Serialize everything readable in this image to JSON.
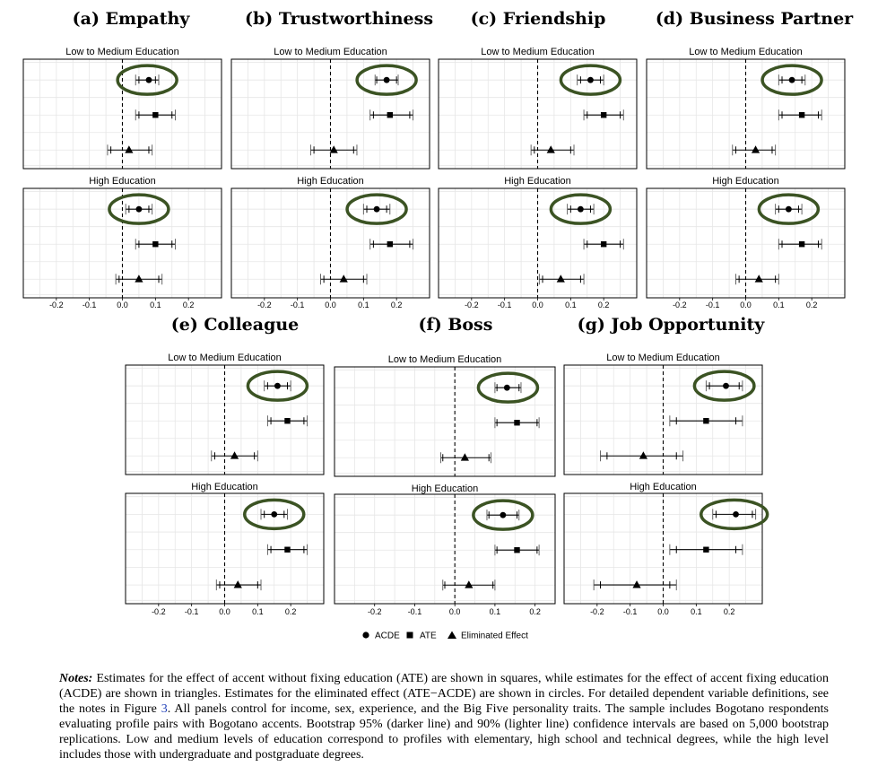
{
  "legend": {
    "acde": "ACDE",
    "ate": "ATE",
    "eliminated": "Eliminated Effect"
  },
  "panel_titles": {
    "low": "Low to Medium Education",
    "high": "High Education"
  },
  "tick_labels": [
    "-0.2",
    "-0.1",
    "0.0",
    "0.1",
    "0.2"
  ],
  "notes": {
    "label": "Notes:",
    "text_1": " Estimates for the effect of accent without fixing education (ATE) are shown in squares, while estimates for the effect of accent fixing education (ACDE) are shown in triangles. Estimates for the eliminated effect (ATE−ACDE) are shown in circles. For detailed dependent variable definitions, see the notes in Figure ",
    "figure_ref": "3",
    "text_2": ". All panels control for income, sex, experience, and the Big Five personality traits. The sample includes Bogotano respondents evaluating profile pairs with Bogotano accents. Bootstrap 95% (darker line) and 90% (lighter line) confidence intervals are based on 5,000 bootstrap replications. Low and medium levels of education correspond to profiles with elementary, high school and technical degrees, while the high level includes those with undergraduate and postgraduate degrees."
  },
  "colors": {
    "highlight": "#3b5323",
    "grid": "#e6e6e6",
    "frame": "#000000"
  },
  "chart_data": [
    {
      "type": "dot-whisker",
      "title": "(a) Empathy",
      "xlim": [
        -0.3,
        0.3
      ],
      "panels": [
        {
          "title": "Low to Medium Education",
          "eliminated": {
            "est": 0.08,
            "ci95": [
              0.04,
              0.11
            ],
            "ci90": [
              0.05,
              0.1
            ]
          },
          "ate": {
            "est": 0.1,
            "ci95": [
              0.04,
              0.16
            ],
            "ci90": [
              0.05,
              0.15
            ]
          },
          "acde": {
            "est": 0.02,
            "ci95": [
              -0.045,
              0.09
            ],
            "ci90": [
              -0.035,
              0.08
            ]
          }
        },
        {
          "title": "High Education",
          "eliminated": {
            "est": 0.05,
            "ci95": [
              0.01,
              0.09
            ],
            "ci90": [
              0.02,
              0.08
            ]
          },
          "ate": {
            "est": 0.1,
            "ci95": [
              0.04,
              0.16
            ],
            "ci90": [
              0.05,
              0.15
            ]
          },
          "acde": {
            "est": 0.05,
            "ci95": [
              -0.02,
              0.12
            ],
            "ci90": [
              -0.01,
              0.11
            ]
          }
        }
      ]
    },
    {
      "type": "dot-whisker",
      "title": "(b) Trustworthiness",
      "xlim": [
        -0.3,
        0.3
      ],
      "panels": [
        {
          "title": "Low to Medium Education",
          "eliminated": {
            "est": 0.17,
            "ci95": [
              0.135,
              0.205
            ],
            "ci90": [
              0.14,
              0.2
            ]
          },
          "ate": {
            "est": 0.18,
            "ci95": [
              0.12,
              0.25
            ],
            "ci90": [
              0.13,
              0.24
            ]
          },
          "acde": {
            "est": 0.01,
            "ci95": [
              -0.06,
              0.08
            ],
            "ci90": [
              -0.05,
              0.07
            ]
          }
        },
        {
          "title": "High Education",
          "eliminated": {
            "est": 0.14,
            "ci95": [
              0.1,
              0.18
            ],
            "ci90": [
              0.11,
              0.17
            ]
          },
          "ate": {
            "est": 0.18,
            "ci95": [
              0.12,
              0.25
            ],
            "ci90": [
              0.13,
              0.24
            ]
          },
          "acde": {
            "est": 0.04,
            "ci95": [
              -0.03,
              0.11
            ],
            "ci90": [
              -0.02,
              0.1
            ]
          }
        }
      ]
    },
    {
      "type": "dot-whisker",
      "title": "(c) Friendship",
      "xlim": [
        -0.3,
        0.3
      ],
      "panels": [
        {
          "title": "Low to Medium Education",
          "eliminated": {
            "est": 0.16,
            "ci95": [
              0.12,
              0.2
            ],
            "ci90": [
              0.13,
              0.19
            ]
          },
          "ate": {
            "est": 0.2,
            "ci95": [
              0.14,
              0.26
            ],
            "ci90": [
              0.15,
              0.25
            ]
          },
          "acde": {
            "est": 0.04,
            "ci95": [
              -0.02,
              0.11
            ],
            "ci90": [
              -0.01,
              0.1
            ]
          }
        },
        {
          "title": "High Education",
          "eliminated": {
            "est": 0.13,
            "ci95": [
              0.09,
              0.17
            ],
            "ci90": [
              0.1,
              0.16
            ]
          },
          "ate": {
            "est": 0.2,
            "ci95": [
              0.14,
              0.26
            ],
            "ci90": [
              0.15,
              0.25
            ]
          },
          "acde": {
            "est": 0.07,
            "ci95": [
              0.005,
              0.14
            ],
            "ci90": [
              0.015,
              0.13
            ]
          }
        }
      ]
    },
    {
      "type": "dot-whisker",
      "title": "(d) Business Partner",
      "xlim": [
        -0.3,
        0.3
      ],
      "panels": [
        {
          "title": "Low to Medium Education",
          "eliminated": {
            "est": 0.14,
            "ci95": [
              0.1,
              0.18
            ],
            "ci90": [
              0.11,
              0.17
            ]
          },
          "ate": {
            "est": 0.17,
            "ci95": [
              0.1,
              0.23
            ],
            "ci90": [
              0.11,
              0.22
            ]
          },
          "acde": {
            "est": 0.03,
            "ci95": [
              -0.04,
              0.09
            ],
            "ci90": [
              -0.03,
              0.08
            ]
          }
        },
        {
          "title": "High Education",
          "eliminated": {
            "est": 0.13,
            "ci95": [
              0.09,
              0.17
            ],
            "ci90": [
              0.1,
              0.16
            ]
          },
          "ate": {
            "est": 0.17,
            "ci95": [
              0.1,
              0.23
            ],
            "ci90": [
              0.11,
              0.22
            ]
          },
          "acde": {
            "est": 0.04,
            "ci95": [
              -0.03,
              0.1
            ],
            "ci90": [
              -0.02,
              0.09
            ]
          }
        }
      ]
    },
    {
      "type": "dot-whisker",
      "title": "(e) Colleague",
      "xlim": [
        -0.3,
        0.3
      ],
      "panels": [
        {
          "title": "Low to Medium Education",
          "eliminated": {
            "est": 0.16,
            "ci95": [
              0.12,
              0.2
            ],
            "ci90": [
              0.13,
              0.19
            ]
          },
          "ate": {
            "est": 0.19,
            "ci95": [
              0.13,
              0.25
            ],
            "ci90": [
              0.14,
              0.24
            ]
          },
          "acde": {
            "est": 0.03,
            "ci95": [
              -0.04,
              0.1
            ],
            "ci90": [
              -0.03,
              0.09
            ]
          }
        },
        {
          "title": "High Education",
          "eliminated": {
            "est": 0.15,
            "ci95": [
              0.11,
              0.19
            ],
            "ci90": [
              0.12,
              0.18
            ]
          },
          "ate": {
            "est": 0.19,
            "ci95": [
              0.13,
              0.25
            ],
            "ci90": [
              0.14,
              0.24
            ]
          },
          "acde": {
            "est": 0.04,
            "ci95": [
              -0.025,
              0.11
            ],
            "ci90": [
              -0.015,
              0.1
            ]
          }
        }
      ]
    },
    {
      "type": "dot-whisker",
      "title": "(f) Boss",
      "xlim": [
        -0.3,
        0.25
      ],
      "panels": [
        {
          "title": "Low to Medium Education",
          "eliminated": {
            "est": 0.13,
            "ci95": [
              0.1,
              0.165
            ],
            "ci90": [
              0.105,
              0.16
            ]
          },
          "ate": {
            "est": 0.155,
            "ci95": [
              0.1,
              0.21
            ],
            "ci90": [
              0.105,
              0.205
            ]
          },
          "acde": {
            "est": 0.025,
            "ci95": [
              -0.035,
              0.09
            ],
            "ci90": [
              -0.03,
              0.085
            ]
          }
        },
        {
          "title": "High Education",
          "eliminated": {
            "est": 0.12,
            "ci95": [
              0.08,
              0.16
            ],
            "ci90": [
              0.085,
              0.155
            ]
          },
          "ate": {
            "est": 0.155,
            "ci95": [
              0.1,
              0.21
            ],
            "ci90": [
              0.105,
              0.205
            ]
          },
          "acde": {
            "est": 0.035,
            "ci95": [
              -0.03,
              0.1
            ],
            "ci90": [
              -0.025,
              0.095
            ]
          }
        }
      ]
    },
    {
      "type": "dot-whisker",
      "title": "(g) Job Opportunity",
      "xlim": [
        -0.3,
        0.3
      ],
      "panels": [
        {
          "title": "Low to Medium Education",
          "eliminated": {
            "est": 0.19,
            "ci95": [
              0.13,
              0.24
            ],
            "ci90": [
              0.14,
              0.23
            ]
          },
          "ate": {
            "est": 0.13,
            "ci95": [
              0.02,
              0.24
            ],
            "ci90": [
              0.04,
              0.22
            ]
          },
          "acde": {
            "est": -0.06,
            "ci95": [
              -0.19,
              0.06
            ],
            "ci90": [
              -0.17,
              0.04
            ]
          }
        },
        {
          "title": "High Education",
          "eliminated": {
            "est": 0.22,
            "ci95": [
              0.15,
              0.28
            ],
            "ci90": [
              0.16,
              0.27
            ]
          },
          "ate": {
            "est": 0.13,
            "ci95": [
              0.02,
              0.24
            ],
            "ci90": [
              0.04,
              0.22
            ]
          },
          "acde": {
            "est": -0.08,
            "ci95": [
              -0.21,
              0.04
            ],
            "ci90": [
              -0.19,
              0.02
            ]
          }
        }
      ]
    }
  ]
}
